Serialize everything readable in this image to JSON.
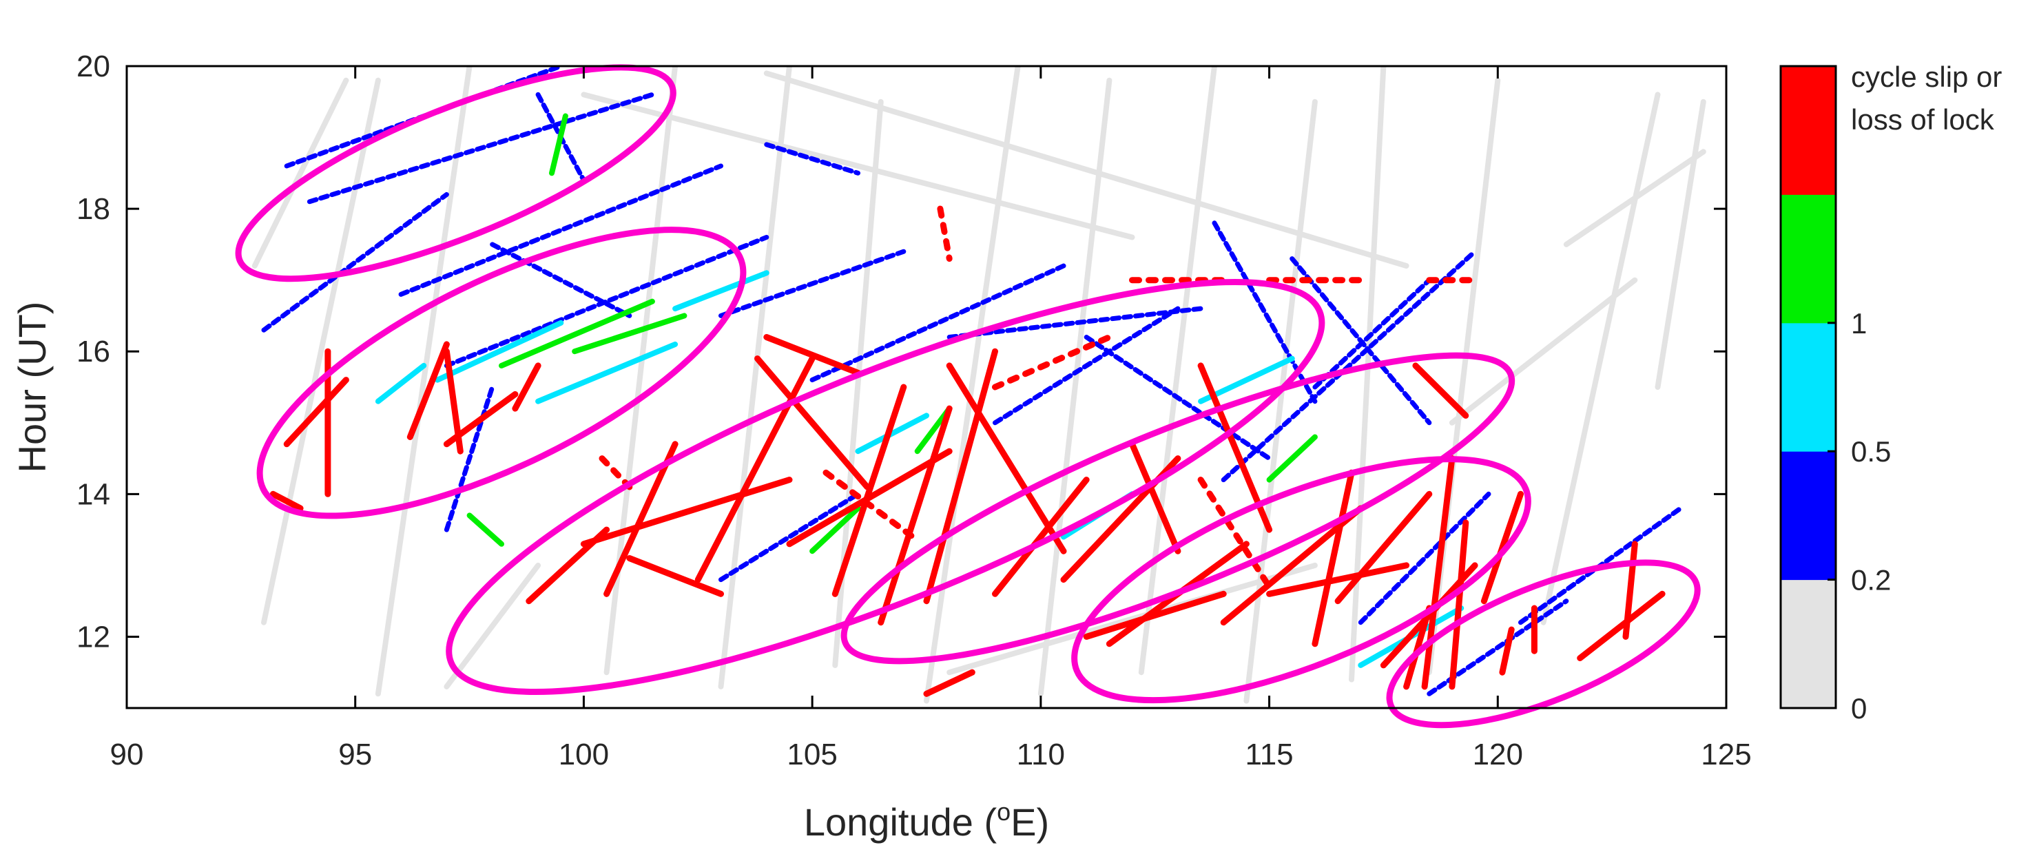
{
  "chart_data": {
    "type": "scatter",
    "title": "",
    "xlabel": "Longitude (",
    "xlabel_sup": "o",
    "xlabel_unit": "E)",
    "ylabel": "Hour (UT)",
    "xlim": [
      90,
      125
    ],
    "ylim": [
      11,
      20
    ],
    "xticks": [
      90,
      95,
      100,
      105,
      110,
      115,
      120,
      125
    ],
    "yticks": [
      12,
      14,
      16,
      18,
      20
    ],
    "grid": false,
    "colorbar": {
      "bins": [
        {
          "from": 0,
          "to": 0.2,
          "color": "#e3e3e3"
        },
        {
          "from": 0.2,
          "to": 0.5,
          "color": "#0000ff"
        },
        {
          "from": 0.5,
          "to": 1,
          "color": "#00e5ff"
        },
        {
          "from": 1,
          "to": 1.5,
          "color": "#00ee00"
        },
        {
          "from": 1.5,
          "to": 2,
          "color": "#ff0000"
        }
      ],
      "tick_labels": [
        "0",
        "0.2",
        "0.5",
        "1"
      ],
      "top_label_line1": "cycle slip or",
      "top_label_line2": "loss of lock"
    },
    "highlight_color": "#ff00cc",
    "highlight_ellipses": [
      {
        "cx": 97.2,
        "cy": 18.5,
        "rx": 10.2,
        "ry": 0.9,
        "angle_deg": -22
      },
      {
        "cx": 98.2,
        "cy": 15.7,
        "rx": 11.6,
        "ry": 1.3,
        "angle_deg": -26
      },
      {
        "cx": 106.6,
        "cy": 14.1,
        "rx": 20.5,
        "ry": 1.6,
        "angle_deg": -22
      },
      {
        "cx": 113.0,
        "cy": 13.8,
        "rx": 15.7,
        "ry": 1.1,
        "angle_deg": -22
      },
      {
        "cx": 115.7,
        "cy": 12.8,
        "rx": 10.6,
        "ry": 1.2,
        "angle_deg": -22
      },
      {
        "cx": 121.0,
        "cy": 11.9,
        "rx": 7.2,
        "ry": 0.8,
        "angle_deg": -22
      }
    ],
    "series": [
      {
        "level": "0-0.2",
        "color": "#e3e3e3",
        "tracks": [
          [
            [
              93,
              12.2
            ],
            [
              95.5,
              19.8
            ]
          ],
          [
            [
              95.5,
              11.2
            ],
            [
              97.5,
              20
            ]
          ],
          [
            [
              100.5,
              11.5
            ],
            [
              102,
              20
            ]
          ],
          [
            [
              103,
              11.3
            ],
            [
              104.5,
              20
            ]
          ],
          [
            [
              105.5,
              11.6
            ],
            [
              106.5,
              19.5
            ]
          ],
          [
            [
              107.5,
              11.1
            ],
            [
              109.5,
              20
            ]
          ],
          [
            [
              110,
              11.2
            ],
            [
              111.5,
              19.8
            ]
          ],
          [
            [
              112.2,
              11.5
            ],
            [
              113.8,
              20
            ]
          ],
          [
            [
              114.5,
              11.1
            ],
            [
              116,
              19.5
            ]
          ],
          [
            [
              116.8,
              11.4
            ],
            [
              117.5,
              20
            ]
          ],
          [
            [
              118.5,
              11.5
            ],
            [
              120,
              19.8
            ]
          ],
          [
            [
              121,
              12.2
            ],
            [
              123.5,
              19.6
            ]
          ],
          [
            [
              123.5,
              15.5
            ],
            [
              124.5,
              19.5
            ]
          ],
          [
            [
              92.8,
              17.2
            ],
            [
              94.8,
              19.8
            ]
          ],
          [
            [
              100,
              19.6
            ],
            [
              112,
              17.6
            ]
          ],
          [
            [
              104,
              19.9
            ],
            [
              118,
              17.2
            ]
          ],
          [
            [
              108,
              11.5
            ],
            [
              116,
              13
            ]
          ],
          [
            [
              119,
              15
            ],
            [
              123,
              17
            ]
          ],
          [
            [
              121.5,
              17.5
            ],
            [
              124.5,
              18.8
            ]
          ],
          [
            [
              97,
              11.3
            ],
            [
              99,
              13
            ]
          ]
        ]
      },
      {
        "level": "0.2-0.5",
        "color": "#0000ff",
        "tracks": [
          [
            [
              93.5,
              18.6
            ],
            [
              99.5,
              20
            ]
          ],
          [
            [
              94,
              18.1
            ],
            [
              101.5,
              19.6
            ]
          ],
          [
            [
              93,
              16.3
            ],
            [
              97,
              18.2
            ]
          ],
          [
            [
              96,
              16.8
            ],
            [
              103,
              18.6
            ]
          ],
          [
            [
              97,
              15.8
            ],
            [
              104,
              17.6
            ]
          ],
          [
            [
              103,
              16.5
            ],
            [
              107,
              17.4
            ]
          ],
          [
            [
              105,
              15.6
            ],
            [
              110.5,
              17.2
            ]
          ],
          [
            [
              108,
              16.2
            ],
            [
              113.5,
              16.6
            ]
          ],
          [
            [
              111,
              16.2
            ],
            [
              115,
              14.5
            ]
          ],
          [
            [
              113.8,
              17.8
            ],
            [
              116,
              15.3
            ]
          ],
          [
            [
              115.5,
              17.3
            ],
            [
              118.5,
              15
            ]
          ],
          [
            [
              114,
              14.2
            ],
            [
              119.5,
              17.4
            ]
          ],
          [
            [
              116,
              15.5
            ],
            [
              118.5,
              17
            ]
          ],
          [
            [
              117,
              12.2
            ],
            [
              119.8,
              14
            ]
          ],
          [
            [
              118.5,
              11.2
            ],
            [
              121.5,
              12.5
            ]
          ],
          [
            [
              120.5,
              12.2
            ],
            [
              124,
              13.8
            ]
          ],
          [
            [
              97,
              13.5
            ],
            [
              98,
              15.5
            ]
          ],
          [
            [
              99,
              19.6
            ],
            [
              100,
              18.4
            ]
          ],
          [
            [
              103,
              12.8
            ],
            [
              106,
              14
            ]
          ],
          [
            [
              109,
              15
            ],
            [
              113,
              16.6
            ]
          ],
          [
            [
              98,
              17.5
            ],
            [
              101,
              16.5
            ]
          ],
          [
            [
              104,
              18.9
            ],
            [
              106,
              18.5
            ]
          ]
        ]
      },
      {
        "level": "0.5-1",
        "color": "#00e5ff",
        "tracks": [
          [
            [
              96.8,
              15.6
            ],
            [
              99.5,
              16.4
            ]
          ],
          [
            [
              99,
              15.3
            ],
            [
              102,
              16.1
            ]
          ],
          [
            [
              102,
              16.6
            ],
            [
              104,
              17.1
            ]
          ],
          [
            [
              117,
              11.6
            ],
            [
              119.2,
              12.4
            ]
          ],
          [
            [
              113.5,
              15.3
            ],
            [
              115.5,
              15.9
            ]
          ],
          [
            [
              106,
              14.6
            ],
            [
              107.5,
              15.1
            ]
          ],
          [
            [
              110.5,
              13.4
            ],
            [
              112,
              14
            ]
          ],
          [
            [
              95.5,
              15.3
            ],
            [
              96.5,
              15.8
            ]
          ]
        ]
      },
      {
        "level": "1-1.5",
        "color": "#00ee00",
        "tracks": [
          [
            [
              98.2,
              15.8
            ],
            [
              101.5,
              16.7
            ]
          ],
          [
            [
              99.8,
              16
            ],
            [
              102.2,
              16.5
            ]
          ],
          [
            [
              99.3,
              18.5
            ],
            [
              99.6,
              19.3
            ]
          ],
          [
            [
              107.3,
              14.6
            ],
            [
              108,
              15.2
            ]
          ],
          [
            [
              115,
              14.2
            ],
            [
              116,
              14.8
            ]
          ],
          [
            [
              97.5,
              13.7
            ],
            [
              98.2,
              13.3
            ]
          ],
          [
            [
              105,
              13.2
            ],
            [
              106,
              13.8
            ]
          ]
        ]
      },
      {
        "level": "cycle slip or loss of lock",
        "color": "#ff0000",
        "tracks": [
          [
            [
              93.2,
              14
            ],
            [
              93.8,
              13.8
            ]
          ],
          [
            [
              93.5,
              14.7
            ],
            [
              94.8,
              15.6
            ]
          ],
          [
            [
              94.4,
              14
            ],
            [
              94.4,
              16
            ]
          ],
          [
            [
              96.2,
              14.8
            ],
            [
              97,
              16.1
            ]
          ],
          [
            [
              97,
              14.7
            ],
            [
              98.5,
              15.4
            ]
          ],
          [
            [
              97,
              16
            ],
            [
              97.3,
              14.6
            ]
          ],
          [
            [
              98.5,
              15.2
            ],
            [
              99,
              15.8
            ]
          ],
          [
            [
              98.8,
              12.5
            ],
            [
              100.5,
              13.5
            ]
          ],
          [
            [
              100,
              13.3
            ],
            [
              104.5,
              14.2
            ]
          ],
          [
            [
              100.5,
              12.6
            ],
            [
              102,
              14.7
            ]
          ],
          [
            [
              101,
              13.1
            ],
            [
              103,
              12.6
            ]
          ],
          [
            [
              102.5,
              12.8
            ],
            [
              105,
              15.9
            ]
          ],
          [
            [
              103.8,
              15.9
            ],
            [
              106.2,
              14.1
            ]
          ],
          [
            [
              104.5,
              13.3
            ],
            [
              108,
              14.6
            ]
          ],
          [
            [
              105.5,
              12.6
            ],
            [
              107,
              15.5
            ]
          ],
          [
            [
              106.5,
              12.2
            ],
            [
              108,
              15.2
            ]
          ],
          [
            [
              107.5,
              11.2
            ],
            [
              108.5,
              11.5
            ]
          ],
          [
            [
              107.5,
              12.5
            ],
            [
              109,
              16
            ]
          ],
          [
            [
              108,
              15.8
            ],
            [
              110.5,
              13.2
            ]
          ],
          [
            [
              109,
              12.6
            ],
            [
              111,
              14.2
            ]
          ],
          [
            [
              110.5,
              12.8
            ],
            [
              113,
              14.5
            ]
          ],
          [
            [
              111,
              12
            ],
            [
              114,
              12.6
            ]
          ],
          [
            [
              111.5,
              11.9
            ],
            [
              114.5,
              13.3
            ]
          ],
          [
            [
              112,
              14.7
            ],
            [
              113,
              13.2
            ]
          ],
          [
            [
              113.5,
              15.8
            ],
            [
              115,
              13.5
            ]
          ],
          [
            [
              114,
              12.2
            ],
            [
              117,
              13.8
            ]
          ],
          [
            [
              115,
              12.6
            ],
            [
              118,
              13
            ]
          ],
          [
            [
              116,
              11.9
            ],
            [
              116.8,
              14.3
            ]
          ],
          [
            [
              116.5,
              12.5
            ],
            [
              118.5,
              14
            ]
          ],
          [
            [
              117.5,
              11.6
            ],
            [
              119.5,
              13
            ]
          ],
          [
            [
              118,
              11.3
            ],
            [
              118.5,
              12.4
            ]
          ],
          [
            [
              118.4,
              11.3
            ],
            [
              119,
              14.5
            ]
          ],
          [
            [
              119,
              11.3
            ],
            [
              119.3,
              13.6
            ]
          ],
          [
            [
              118.2,
              15.8
            ],
            [
              119.3,
              15.1
            ]
          ],
          [
            [
              119.7,
              12.5
            ],
            [
              120.5,
              14
            ]
          ],
          [
            [
              120.1,
              11.5
            ],
            [
              120.3,
              12.1
            ]
          ],
          [
            [
              120.8,
              11.8
            ],
            [
              120.8,
              12.4
            ]
          ],
          [
            [
              121.8,
              11.7
            ],
            [
              123.6,
              12.6
            ]
          ],
          [
            [
              122.8,
              12
            ],
            [
              123,
              13.3
            ]
          ],
          [
            [
              104,
              16.2
            ],
            [
              106,
              15.7
            ]
          ],
          [
            [
              109,
              15.5
            ],
            [
              111.5,
              16.2
            ]
          ],
          [
            [
              107.8,
              18
            ],
            [
              108,
              17.3
            ]
          ],
          [
            [
              112,
              17
            ],
            [
              114,
              17
            ]
          ],
          [
            [
              115,
              17
            ],
            [
              117,
              17
            ]
          ],
          [
            [
              118.5,
              17
            ],
            [
              119.5,
              17
            ]
          ],
          [
            [
              100.4,
              14.5
            ],
            [
              101,
              14.1
            ]
          ],
          [
            [
              105.3,
              14.3
            ],
            [
              107.2,
              13.4
            ]
          ],
          [
            [
              113.5,
              14.2
            ],
            [
              115,
              12.7
            ]
          ]
        ]
      }
    ]
  }
}
